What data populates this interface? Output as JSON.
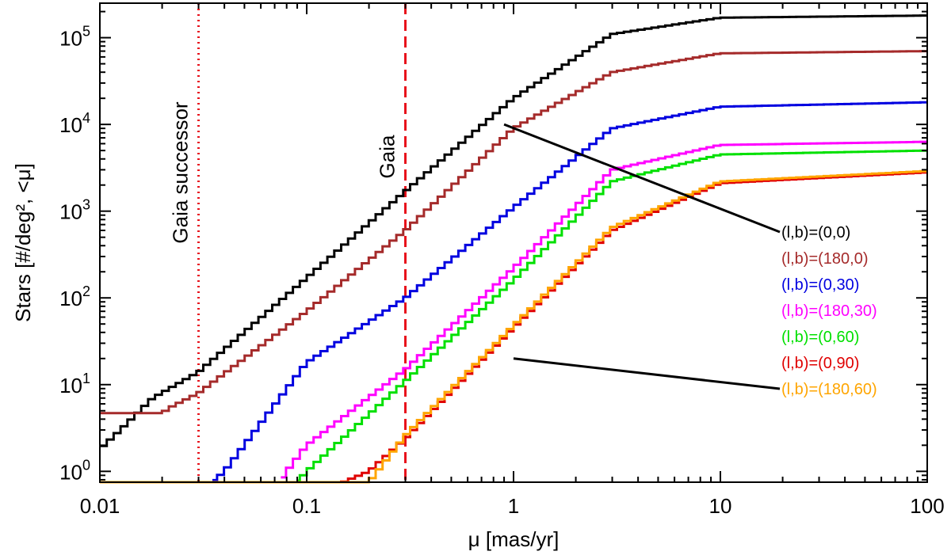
{
  "chart_data": {
    "type": "line",
    "step": true,
    "xscale": "log",
    "yscale": "log",
    "xlim": [
      0.01,
      100
    ],
    "ylim": [
      0.75,
      250000
    ],
    "xlabel": "μ [mas/yr]",
    "ylabel": "Stars [#/deg², <μ]",
    "x_ticks": [
      {
        "value": 0.01,
        "label": "0.01"
      },
      {
        "value": 0.1,
        "label": "0.1"
      },
      {
        "value": 1,
        "label": "1"
      },
      {
        "value": 10,
        "label": "10"
      },
      {
        "value": 100,
        "label": "100"
      }
    ],
    "y_ticks": [
      {
        "value": 1,
        "base": "10",
        "exp": "0"
      },
      {
        "value": 10,
        "base": "10",
        "exp": "1"
      },
      {
        "value": 100,
        "base": "10",
        "exp": "2"
      },
      {
        "value": 1000,
        "base": "10",
        "exp": "3"
      },
      {
        "value": 10000,
        "base": "10",
        "exp": "4"
      },
      {
        "value": 100000,
        "base": "10",
        "exp": "5"
      }
    ],
    "vertical_lines": [
      {
        "x": 0.03,
        "label": "Gaia successor",
        "style": "dotted",
        "color": "#e8101a"
      },
      {
        "x": 0.3,
        "label": "Gaia",
        "style": "dashed",
        "color": "#e8101a"
      }
    ],
    "series": [
      {
        "name": "(l,b)=(0,0)",
        "color": "#000000",
        "points": [
          [
            0.01,
            1.8
          ],
          [
            0.012,
            2.7
          ],
          [
            0.018,
            7
          ],
          [
            0.03,
            14
          ],
          [
            0.1,
            170
          ],
          [
            0.3,
            1700
          ],
          [
            1,
            20000
          ],
          [
            3,
            110000
          ],
          [
            10,
            170000
          ],
          [
            100,
            180000
          ]
        ]
      },
      {
        "name": "(l,b)=(180,0)",
        "color": "#a52a2a",
        "points": [
          [
            0.01,
            4.7
          ],
          [
            0.02,
            4.7
          ],
          [
            0.022,
            5.5
          ],
          [
            0.03,
            8
          ],
          [
            0.1,
            70
          ],
          [
            0.3,
            600
          ],
          [
            1,
            9000
          ],
          [
            3,
            40000
          ],
          [
            10,
            66000
          ],
          [
            100,
            70000
          ]
        ]
      },
      {
        "name": "(l,b)=(0,30)",
        "color": "#0000e0",
        "points": [
          [
            0.035,
            0.75
          ],
          [
            0.04,
            1
          ],
          [
            0.1,
            18
          ],
          [
            0.3,
            100
          ],
          [
            1,
            1100
          ],
          [
            3,
            9000
          ],
          [
            10,
            16000
          ],
          [
            100,
            18000
          ]
        ]
      },
      {
        "name": "(l,b)=(180,30)",
        "color": "#ff00ff",
        "points": [
          [
            0.075,
            0.75
          ],
          [
            0.08,
            1
          ],
          [
            0.1,
            2
          ],
          [
            0.3,
            15
          ],
          [
            1,
            220
          ],
          [
            3,
            3000
          ],
          [
            10,
            5800
          ],
          [
            100,
            6300
          ]
        ]
      },
      {
        "name": "(l,b)=(0,60)",
        "color": "#00e000",
        "points": [
          [
            0.09,
            0.75
          ],
          [
            0.1,
            1
          ],
          [
            0.3,
            11
          ],
          [
            1,
            160
          ],
          [
            3,
            2200
          ],
          [
            10,
            4500
          ],
          [
            100,
            5000
          ]
        ]
      },
      {
        "name": "(l,b)=(0,90)",
        "color": "#e00000",
        "points": [
          [
            0.01,
            0.75
          ],
          [
            0.15,
            0.75
          ],
          [
            0.2,
            1
          ],
          [
            0.3,
            2.4
          ],
          [
            1,
            45
          ],
          [
            3,
            600
          ],
          [
            10,
            2100
          ],
          [
            100,
            2800
          ]
        ]
      },
      {
        "name": "(l,b)=(180,60)",
        "color": "#ffa500",
        "points": [
          [
            0.01,
            0.75
          ],
          [
            0.2,
            0.75
          ],
          [
            0.22,
            1
          ],
          [
            0.3,
            2.6
          ],
          [
            1,
            48
          ],
          [
            3,
            650
          ],
          [
            10,
            2200
          ],
          [
            100,
            2900
          ]
        ]
      }
    ],
    "annotations": [
      {
        "type": "line",
        "from": [
          0.9,
          10000
        ],
        "to": [
          20,
          600
        ],
        "label": "(l,b)=(0,0)"
      },
      {
        "type": "line",
        "from": [
          1,
          20
        ],
        "to": [
          20,
          10
        ],
        "label": "(l,b)=(180,60)"
      }
    ],
    "legend": "right, inside plot"
  }
}
